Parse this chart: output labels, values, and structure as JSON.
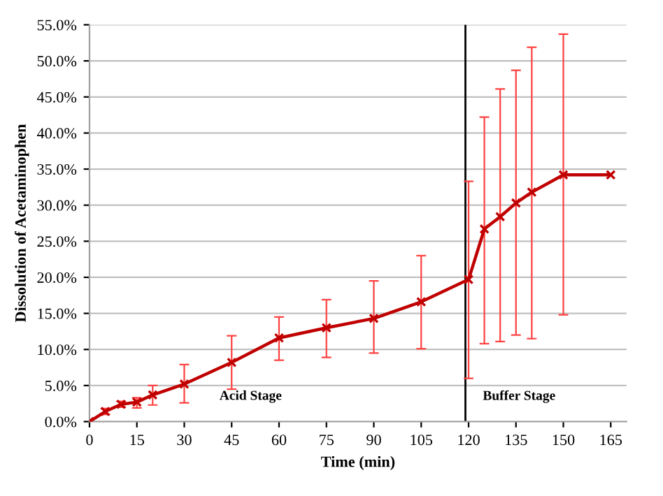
{
  "chart_data": {
    "type": "line",
    "xlabel": "Time (min)",
    "ylabel": "Dissolution of Acetaminophen",
    "x": [
      0,
      5,
      10,
      15,
      20,
      30,
      45,
      60,
      75,
      90,
      105,
      120,
      125,
      130,
      135,
      140,
      150,
      165
    ],
    "series": [
      {
        "color": "#c00000",
        "values": [
          0,
          1.4,
          2.4,
          2.7,
          3.7,
          5.2,
          8.2,
          11.6,
          13.0,
          14.3,
          16.6,
          19.7,
          26.7,
          28.4,
          30.3,
          31.8,
          34.2,
          34.2
        ],
        "errors": [
          null,
          [
            1.0,
            1.8
          ],
          [
            2.0,
            2.8
          ],
          [
            1.9,
            3.3
          ],
          [
            2.3,
            5.0
          ],
          [
            2.6,
            7.9
          ],
          [
            4.5,
            11.9
          ],
          [
            8.5,
            14.5
          ],
          [
            8.9,
            16.9
          ],
          [
            9.5,
            19.5
          ],
          [
            10.1,
            23.0
          ],
          [
            6.0,
            33.3
          ],
          [
            10.8,
            42.2
          ],
          [
            11.1,
            46.1
          ],
          [
            12.0,
            48.7
          ],
          [
            11.5,
            51.9
          ],
          [
            14.8,
            53.7
          ],
          null
        ]
      }
    ],
    "xlim": [
      0,
      170
    ],
    "xticks": [
      0,
      15,
      30,
      45,
      60,
      75,
      90,
      105,
      120,
      135,
      150,
      165
    ],
    "ylim": [
      0,
      55
    ],
    "yticks": [
      {
        "value": 0,
        "label": "0.0%"
      },
      {
        "value": 5,
        "label": "5.0%"
      },
      {
        "value": 10,
        "label": "10.0%"
      },
      {
        "value": 15,
        "label": "15.0%"
      },
      {
        "value": 20,
        "label": "20.0%"
      },
      {
        "value": 25,
        "label": "25.0%"
      },
      {
        "value": 30,
        "label": "30.0%"
      },
      {
        "value": 35,
        "label": "35.0%"
      },
      {
        "value": 40,
        "label": "40.0%"
      },
      {
        "value": 45,
        "label": "45.0%"
      },
      {
        "value": 50,
        "label": "50.0%"
      },
      {
        "value": 55,
        "label": "55.0%"
      }
    ],
    "grid": "y",
    "marker": "cross",
    "line_style": "solid",
    "ref_lines": [
      {
        "axis": "x",
        "value": 119,
        "label": null,
        "color": "#000000"
      }
    ],
    "annotations": [
      "Acid Stage",
      "Buffer Stage"
    ]
  }
}
